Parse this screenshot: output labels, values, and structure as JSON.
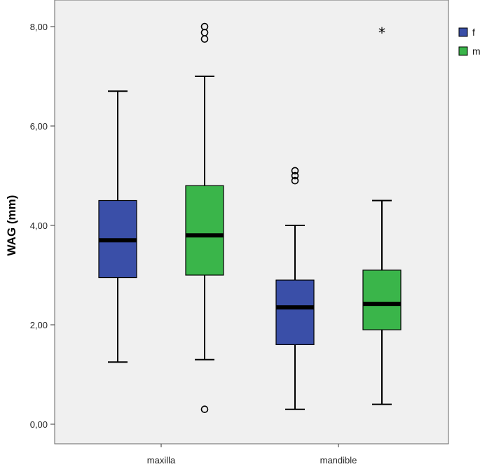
{
  "chart_data": {
    "type": "boxplot",
    "ylabel": "WAG (mm)",
    "xlabel": "",
    "ylim": [
      0,
      8.2
    ],
    "yticks": [
      0,
      2,
      4,
      6,
      8
    ],
    "ytick_labels": [
      "0,00",
      "2,00",
      "4,00",
      "6,00",
      "8,00"
    ],
    "categories": [
      "maxilla",
      "mandible"
    ],
    "legend_position": "top-right",
    "grid": false,
    "background": "#f0f0f0",
    "series": [
      {
        "name": "f",
        "color": "#3a4fa8",
        "boxes": [
          {
            "category": "maxilla",
            "min": 1.25,
            "q1": 2.95,
            "median": 3.7,
            "q3": 4.5,
            "max": 6.7,
            "outliers": [],
            "extremes": []
          },
          {
            "category": "mandible",
            "min": 0.3,
            "q1": 1.6,
            "median": 2.35,
            "q3": 2.9,
            "max": 4.0,
            "outliers": [
              4.9,
              5.0,
              5.1
            ],
            "extremes": []
          }
        ]
      },
      {
        "name": "m",
        "color": "#3ab54a",
        "boxes": [
          {
            "category": "maxilla",
            "min": 1.3,
            "q1": 3.0,
            "median": 3.8,
            "q3": 4.8,
            "max": 7.0,
            "outliers": [
              7.75,
              7.88,
              8.0,
              0.3
            ],
            "extremes": []
          },
          {
            "category": "mandible",
            "min": 0.4,
            "q1": 1.9,
            "median": 2.42,
            "q3": 3.1,
            "max": 4.5,
            "outliers": [],
            "extremes": [
              7.9
            ]
          }
        ]
      }
    ]
  }
}
